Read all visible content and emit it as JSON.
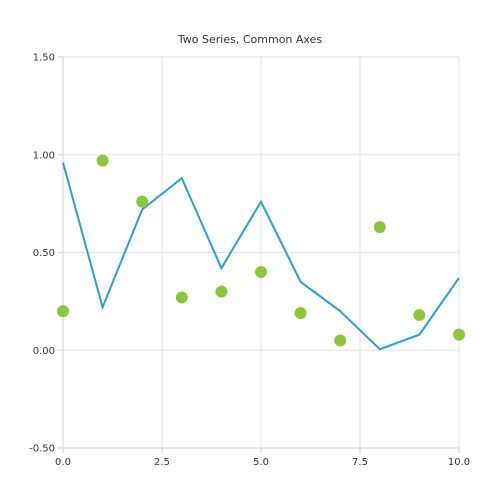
{
  "chart_data": {
    "type": "line",
    "title": "Two Series, Common Axes",
    "xlabel": "",
    "ylabel": "",
    "xlim": [
      0,
      10
    ],
    "ylim": [
      -0.5,
      1.5
    ],
    "x_ticks": [
      "0.0",
      "2.5",
      "5.0",
      "7.5",
      "10.0"
    ],
    "y_ticks": [
      "1.50",
      "1.00",
      "0.50",
      "0.00",
      "-0.50"
    ],
    "grid": true,
    "legend": "none",
    "series": [
      {
        "type": "line",
        "color": "#2a9fd6",
        "x": [
          0,
          1,
          2,
          3,
          4,
          5,
          6,
          7,
          8,
          9,
          10
        ],
        "y": [
          0.96,
          0.22,
          0.72,
          0.88,
          0.42,
          0.76,
          0.35,
          0.2,
          0.005,
          0.08,
          0.37
        ]
      },
      {
        "type": "scatter",
        "color": "#8cc63f",
        "x": [
          0,
          1,
          2,
          3,
          4,
          5,
          6,
          7,
          8,
          9,
          10
        ],
        "y": [
          0.2,
          0.97,
          0.76,
          0.27,
          0.3,
          0.4,
          0.19,
          0.05,
          0.63,
          0.18,
          0.08
        ]
      }
    ]
  }
}
